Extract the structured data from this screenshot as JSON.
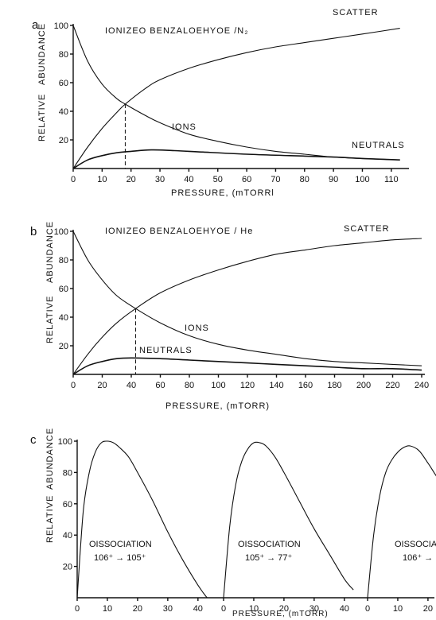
{
  "chart_data": [
    {
      "panel": "a",
      "type": "line",
      "title": "IONIZEO BENZALOEHYOE /N₂",
      "xlabel": "PRESSURE, (mTORRl",
      "ylabel_top": "ABUNDANCE",
      "ylabel_bottom": "RELATIVE",
      "xlim": [
        0,
        115
      ],
      "ylim": [
        0,
        100
      ],
      "xticks": [
        0,
        10,
        20,
        30,
        40,
        50,
        60,
        70,
        80,
        90,
        100,
        110
      ],
      "yticks": [
        20,
        40,
        60,
        80,
        100
      ],
      "crossover_x": 18,
      "series": [
        {
          "name": "SCATTER",
          "x": [
            0,
            5,
            10,
            15,
            18,
            25,
            30,
            40,
            50,
            60,
            70,
            80,
            90,
            100,
            113
          ],
          "y": [
            0,
            15,
            28,
            39,
            45,
            56,
            62,
            70,
            76,
            81,
            85,
            88,
            91,
            94,
            98
          ]
        },
        {
          "name": "IONS",
          "x": [
            0,
            5,
            10,
            15,
            18,
            25,
            30,
            40,
            50,
            60,
            70,
            80,
            90,
            100,
            113
          ],
          "y": [
            100,
            75,
            59,
            49,
            45,
            37,
            32,
            24,
            19,
            15,
            12,
            10,
            8,
            7,
            6
          ]
        },
        {
          "name": "NEUTRALS",
          "x": [
            0,
            5,
            10,
            15,
            20,
            27,
            35,
            45,
            60,
            75,
            90,
            100,
            113
          ],
          "y": [
            0,
            6,
            9,
            11,
            12,
            13,
            12.5,
            11.5,
            10,
            9,
            8,
            7,
            6
          ]
        }
      ]
    },
    {
      "panel": "b",
      "type": "line",
      "title": "IONIZEO BENZALOEHYOE / He",
      "xlabel": "PRESSURE, (mTORR)",
      "ylabel_top": "ABUNDANCE",
      "ylabel_bottom": "RELATIVE",
      "xlim": [
        0,
        240
      ],
      "ylim": [
        0,
        100
      ],
      "xticks": [
        0,
        20,
        40,
        60,
        80,
        100,
        120,
        140,
        160,
        180,
        200,
        220,
        240
      ],
      "yticks": [
        20,
        40,
        60,
        80,
        100
      ],
      "crossover_x": 43,
      "series": [
        {
          "name": "SCATTER",
          "x": [
            0,
            10,
            20,
            30,
            43,
            60,
            80,
            100,
            120,
            140,
            160,
            180,
            200,
            220,
            240
          ],
          "y": [
            0,
            14,
            26,
            36,
            46,
            57,
            66,
            73,
            79,
            84,
            87,
            90,
            92,
            94,
            95
          ]
        },
        {
          "name": "IONS",
          "x": [
            0,
            10,
            20,
            30,
            43,
            60,
            80,
            100,
            120,
            140,
            160,
            180,
            200,
            220,
            240
          ],
          "y": [
            100,
            80,
            66,
            55,
            46,
            36,
            27,
            21,
            17,
            14,
            11,
            9,
            8,
            7,
            6
          ]
        },
        {
          "name": "NEUTRALS",
          "x": [
            0,
            10,
            20,
            30,
            40,
            60,
            80,
            100,
            120,
            140,
            160,
            180,
            200,
            220,
            240
          ],
          "y": [
            0,
            6,
            9,
            11,
            11.5,
            11,
            10,
            9,
            8,
            7,
            6,
            5,
            4,
            4,
            3
          ]
        }
      ]
    },
    {
      "panel": "c",
      "type": "line",
      "ylabel_top": "ABUNDANCE",
      "ylabel_bottom": "RELATIVE",
      "xlabel": "PRESSURE,  (mTORR)",
      "ylim": [
        0,
        100
      ],
      "yticks": [
        20,
        40,
        60,
        80,
        100
      ],
      "subplots": [
        {
          "label_line1": "OISSOCIATION",
          "label_line2": "106⁺ → 105⁺",
          "xticks": [
            0,
            10,
            20,
            30,
            40
          ],
          "xlim": [
            0,
            44
          ],
          "x": [
            0,
            2,
            4,
            6,
            8,
            10,
            12,
            14,
            17,
            20,
            25,
            30,
            35,
            40,
            43
          ],
          "y": [
            0,
            55,
            80,
            93,
            99,
            100,
            99,
            96,
            90,
            80,
            62,
            42,
            24,
            8,
            0
          ]
        },
        {
          "label_line1": "OISSOCIATION",
          "label_line2": "105⁺ → 77⁺",
          "xticks": [
            0,
            10,
            20,
            30,
            40
          ],
          "xlim": [
            0,
            44
          ],
          "x": [
            0,
            2,
            4,
            6,
            8,
            10,
            12,
            14,
            17,
            20,
            25,
            30,
            35,
            40,
            43
          ],
          "y": [
            0,
            45,
            72,
            87,
            95,
            99,
            99,
            97,
            90,
            80,
            62,
            44,
            28,
            12,
            5
          ]
        },
        {
          "label_line1": "OISSOCIA",
          "label_line2": "106⁺ →",
          "xticks": [
            0,
            10,
            20
          ],
          "xlim": [
            0,
            44
          ],
          "x": [
            0,
            2,
            4,
            6,
            8,
            10,
            12,
            14,
            17,
            20,
            22,
            24
          ],
          "y": [
            0,
            40,
            65,
            80,
            88,
            93,
            96,
            97,
            94,
            86,
            80,
            74
          ]
        }
      ]
    }
  ],
  "panel_letters": [
    "a",
    "b",
    "c"
  ]
}
